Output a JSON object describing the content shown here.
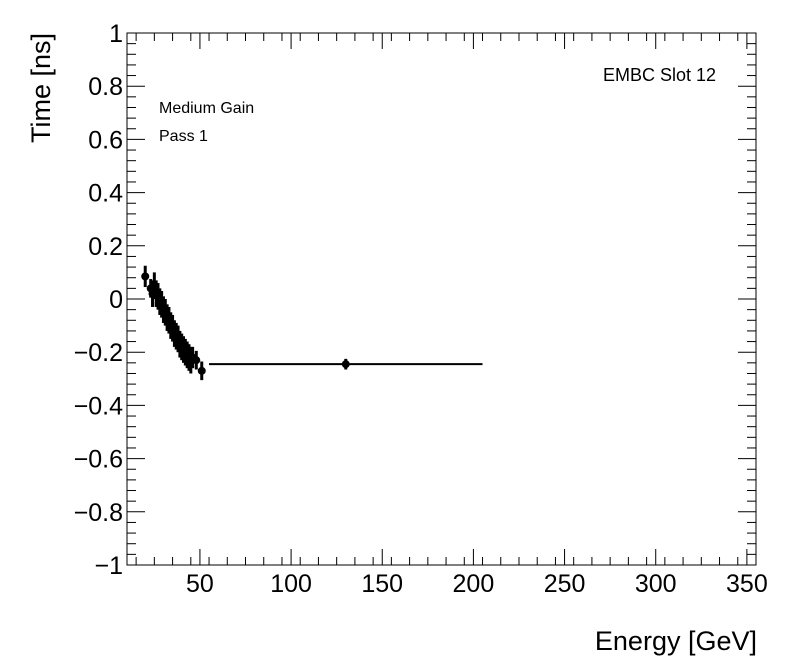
{
  "chart_data": {
    "type": "scatter",
    "title": "",
    "xlabel": "Energy [GeV]",
    "ylabel": "Time [ns]",
    "xlim": [
      10,
      355
    ],
    "ylim": [
      -1,
      1
    ],
    "x_ticks": [
      50,
      100,
      150,
      200,
      250,
      300,
      350
    ],
    "y_ticks": [
      -1,
      -0.8,
      -0.6,
      -0.4,
      -0.2,
      0,
      0.2,
      0.4,
      0.6,
      0.8,
      1
    ],
    "x_tick_labels": [
      "50",
      "100",
      "150",
      "200",
      "250",
      "300",
      "350"
    ],
    "y_tick_labels": [
      "−1",
      "−0.8",
      "−0.6",
      "−0.4",
      "−0.2",
      "0",
      "0.2",
      "0.4",
      "0.6",
      "0.8",
      "1"
    ],
    "grid": false,
    "annotations": {
      "top_left": [
        "Medium Gain",
        "Pass 1"
      ],
      "top_right": "EMBC Slot 12"
    },
    "series": [
      {
        "points": [
          {
            "x": 20,
            "y": 0.085,
            "yerr": 0.04,
            "xerr": 1.5
          },
          {
            "x": 23,
            "y": 0.04,
            "yerr": 0.035,
            "xerr": 0.8
          },
          {
            "x": 24,
            "y": 0.02,
            "yerr": 0.05,
            "xerr": 0.8
          },
          {
            "x": 25,
            "y": 0.05,
            "yerr": 0.05,
            "xerr": 0.8
          },
          {
            "x": 26,
            "y": 0.02,
            "yerr": 0.05,
            "xerr": 0.8
          },
          {
            "x": 27,
            "y": 0.01,
            "yerr": 0.05,
            "xerr": 0.8
          },
          {
            "x": 28,
            "y": -0.01,
            "yerr": 0.05,
            "xerr": 0.8
          },
          {
            "x": 29,
            "y": -0.02,
            "yerr": 0.05,
            "xerr": 0.8
          },
          {
            "x": 30,
            "y": -0.04,
            "yerr": 0.05,
            "xerr": 0.8
          },
          {
            "x": 31,
            "y": -0.05,
            "yerr": 0.05,
            "xerr": 0.8
          },
          {
            "x": 32,
            "y": -0.07,
            "yerr": 0.05,
            "xerr": 0.8
          },
          {
            "x": 33,
            "y": -0.08,
            "yerr": 0.05,
            "xerr": 0.8
          },
          {
            "x": 34,
            "y": -0.1,
            "yerr": 0.05,
            "xerr": 0.8
          },
          {
            "x": 35,
            "y": -0.11,
            "yerr": 0.05,
            "xerr": 0.8
          },
          {
            "x": 36,
            "y": -0.13,
            "yerr": 0.05,
            "xerr": 0.8
          },
          {
            "x": 37,
            "y": -0.14,
            "yerr": 0.05,
            "xerr": 0.8
          },
          {
            "x": 38,
            "y": -0.15,
            "yerr": 0.05,
            "xerr": 0.8
          },
          {
            "x": 39,
            "y": -0.17,
            "yerr": 0.05,
            "xerr": 0.8
          },
          {
            "x": 40,
            "y": -0.18,
            "yerr": 0.05,
            "xerr": 0.8
          },
          {
            "x": 41,
            "y": -0.19,
            "yerr": 0.05,
            "xerr": 0.8
          },
          {
            "x": 42,
            "y": -0.2,
            "yerr": 0.05,
            "xerr": 0.8
          },
          {
            "x": 43,
            "y": -0.21,
            "yerr": 0.05,
            "xerr": 0.8
          },
          {
            "x": 44,
            "y": -0.22,
            "yerr": 0.05,
            "xerr": 0.8
          },
          {
            "x": 45,
            "y": -0.23,
            "yerr": 0.05,
            "xerr": 0.8
          },
          {
            "x": 46,
            "y": -0.22,
            "yerr": 0.04,
            "xerr": 0.8
          },
          {
            "x": 48,
            "y": -0.23,
            "yerr": 0.035,
            "xerr": 1
          },
          {
            "x": 51,
            "y": -0.27,
            "yerr": 0.035,
            "xerr": 1.5
          },
          {
            "x": 130,
            "y": -0.245,
            "yerr": 0.02,
            "xerr": 75
          }
        ]
      }
    ]
  }
}
